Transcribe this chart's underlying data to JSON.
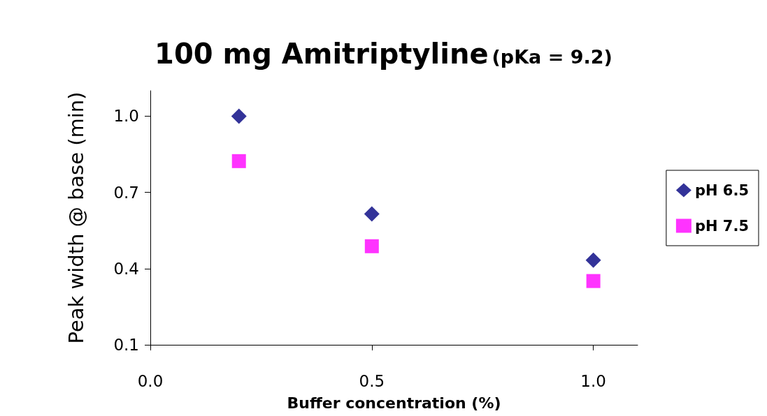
{
  "chart_data": {
    "type": "scatter",
    "title": "100 mg Amitriptyline",
    "subtitle": "(pKa = 9.2)",
    "xlabel": "Buffer concentration (%)",
    "ylabel": "Peak width @ base (min)",
    "x": [
      0.2,
      0.5,
      1.0
    ],
    "series": [
      {
        "name": "pH 6.5",
        "color": "#000080",
        "marker": "diamond",
        "values": [
          1.0,
          0.615,
          0.433
        ]
      },
      {
        "name": "pH 7.5",
        "color": "#ff00ff",
        "marker": "square",
        "values": [
          0.823,
          0.488,
          0.351
        ]
      }
    ],
    "xlim": [
      0,
      1.1
    ],
    "xticks": [
      {
        "value": 0,
        "label": "0.0"
      },
      0.5,
      {
        "value": 1,
        "label": "1.0"
      }
    ],
    "ylim": [
      0.1,
      1.1
    ],
    "yticks": [
      {
        "value": 0.1,
        "label": "0.1"
      },
      {
        "value": 0.4,
        "label": "0.4"
      },
      {
        "value": 0.7,
        "label": "0.7"
      },
      {
        "value": 1,
        "label": "1.0"
      }
    ],
    "grid": false,
    "legend": "right"
  }
}
